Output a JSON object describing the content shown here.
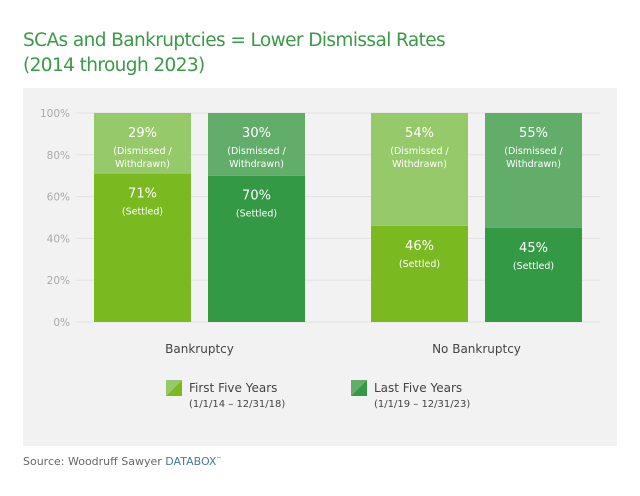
{
  "title_line1": "SCAs and Bankruptcies = Lower Dismissal Rates",
  "title_line2": "(2014 through 2023)",
  "source_prefix": "Source: Woodruff Sawyer ",
  "source_brand": "DATABOX",
  "source_mark": "™",
  "chart_data": {
    "type": "bar",
    "stacked": true,
    "categories": [
      "Bankruptcy",
      "No Bankruptcy"
    ],
    "ylim": [
      0,
      100
    ],
    "yticks": [
      "0%",
      "20%",
      "40%",
      "60%",
      "80%",
      "100%"
    ],
    "grid": true,
    "legend_position": "bottom",
    "series": [
      {
        "name": "First Five Years",
        "sub": "(1/1/14 – 12/31/18)",
        "settled": [
          71,
          46
        ],
        "dismissed": [
          29,
          54
        ],
        "color_settled": "#7aba20",
        "color_dismissed": "#96c96a"
      },
      {
        "name": "Last Five Years",
        "sub": "(1/1/19 – 12/31/23)",
        "settled": [
          70,
          45
        ],
        "dismissed": [
          30,
          55
        ],
        "color_settled": "#339944",
        "color_dismissed": "#62ad6a"
      }
    ],
    "settled_label": "(Settled)",
    "dismissed_label_1": "(Dismissed /",
    "dismissed_label_2": "Withdrawn)"
  }
}
